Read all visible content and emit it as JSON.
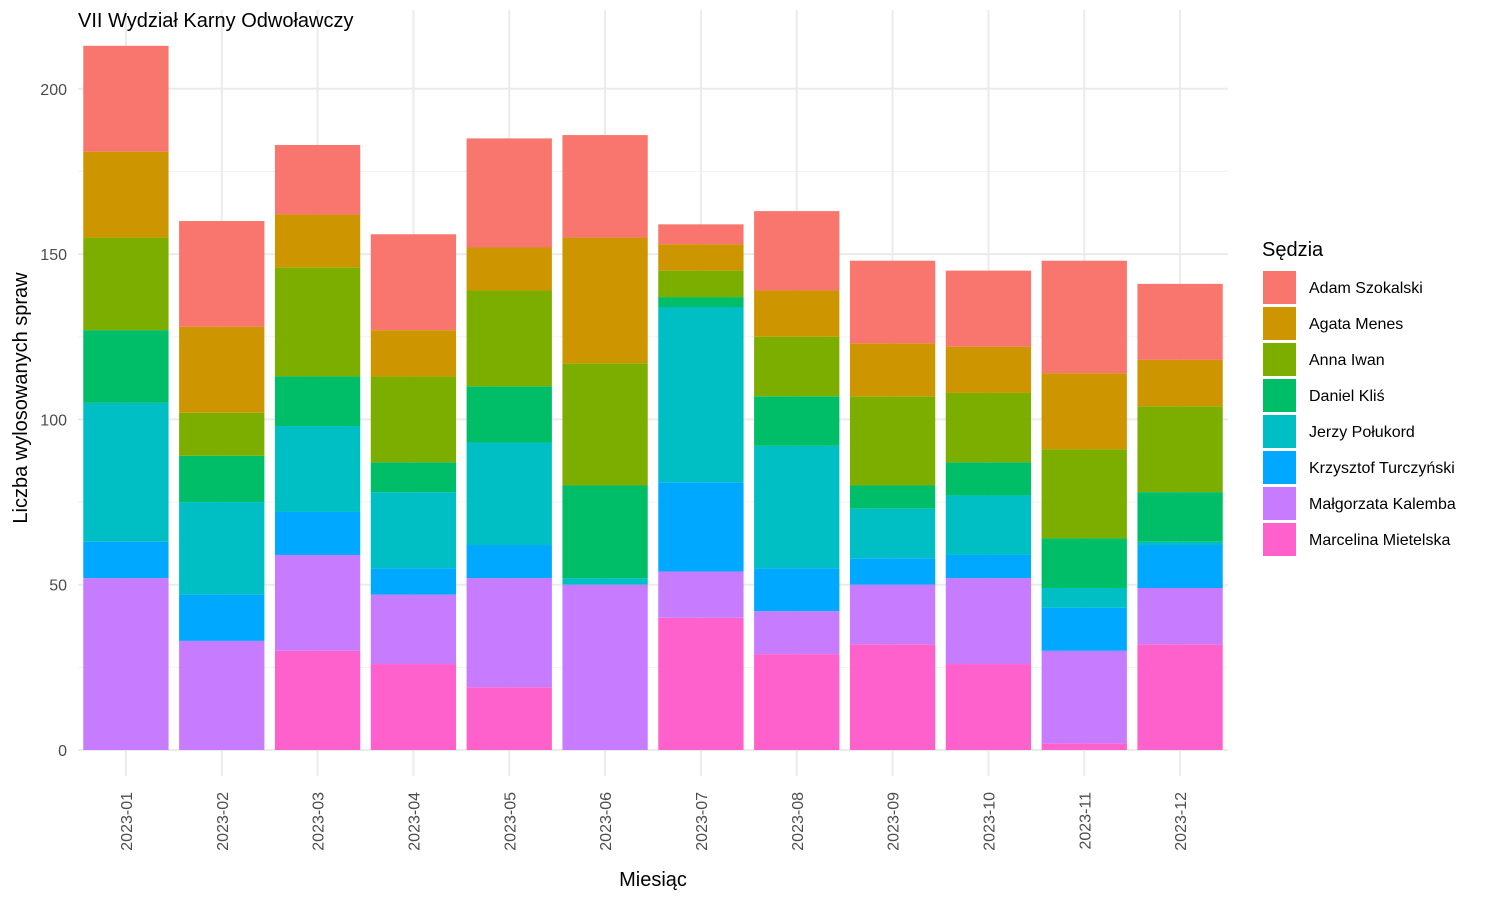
{
  "chart_data": {
    "type": "bar",
    "stacked": true,
    "title": "VII Wydział Karny Odwoławczy",
    "xlabel": "Miesiąc",
    "ylabel": "Liczba wylosowanych spraw",
    "ylim": [
      0,
      213
    ],
    "yticks": [
      0,
      50,
      100,
      150,
      200
    ],
    "grid": true,
    "legend_title": "Sędzia",
    "legend_position": "right",
    "categories": [
      "2023-01",
      "2023-02",
      "2023-03",
      "2023-04",
      "2023-05",
      "2023-06",
      "2023-07",
      "2023-08",
      "2023-09",
      "2023-10",
      "2023-11",
      "2023-12"
    ],
    "series": [
      {
        "name": "Marcelina Mietelska",
        "color": "#FF61CC",
        "values": [
          0,
          0,
          30,
          26,
          19,
          0,
          40,
          29,
          32,
          26,
          2,
          32
        ]
      },
      {
        "name": "Małgorzata Kalemba",
        "color": "#C77CFF",
        "values": [
          52,
          33,
          29,
          21,
          33,
          50,
          14,
          13,
          18,
          26,
          28,
          17
        ]
      },
      {
        "name": "Krzysztof Turczyński",
        "color": "#00A9FF",
        "values": [
          11,
          14,
          13,
          8,
          10,
          0,
          27,
          13,
          8,
          7,
          13,
          13
        ]
      },
      {
        "name": "Jerzy Połukord",
        "color": "#00BFC4",
        "values": [
          42,
          28,
          26,
          23,
          31,
          2,
          53,
          37,
          15,
          18,
          6,
          1
        ]
      },
      {
        "name": "Daniel Kliś",
        "color": "#00BE67",
        "values": [
          22,
          14,
          15,
          9,
          17,
          28,
          3,
          15,
          7,
          10,
          15,
          15
        ]
      },
      {
        "name": "Anna Iwan",
        "color": "#7CAE00",
        "values": [
          28,
          13,
          33,
          26,
          29,
          37,
          8,
          18,
          27,
          21,
          27,
          26
        ]
      },
      {
        "name": "Agata Menes",
        "color": "#CD9600",
        "values": [
          26,
          26,
          16,
          14,
          13,
          38,
          8,
          14,
          16,
          14,
          23,
          14
        ]
      },
      {
        "name": "Adam Szokalski",
        "color": "#F8766D",
        "values": [
          32,
          32,
          21,
          29,
          33,
          31,
          6,
          24,
          25,
          23,
          34,
          23
        ]
      }
    ],
    "legend_order": [
      "Adam Szokalski",
      "Agata Menes",
      "Anna Iwan",
      "Daniel Kliś",
      "Jerzy Połukord",
      "Krzysztof Turczyński",
      "Małgorzata Kalemba",
      "Marcelina Mietelska"
    ]
  }
}
